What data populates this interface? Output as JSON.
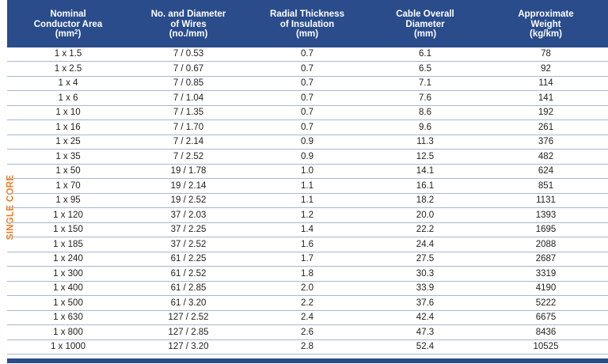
{
  "side_label": "SINGLE CORE",
  "headers": [
    {
      "lines": [
        "Nominal",
        "Conductor Area"
      ],
      "unit_pre": "(mm",
      "unit_sup": "2",
      "unit_post": ")"
    },
    {
      "lines": [
        "No. and Diameter",
        "of Wires"
      ],
      "unit_pre": "(no./mm)",
      "unit_sup": "",
      "unit_post": ""
    },
    {
      "lines": [
        "Radial Thickness",
        "of Insulation"
      ],
      "unit_pre": "(mm)",
      "unit_sup": "",
      "unit_post": ""
    },
    {
      "lines": [
        "Cable Overall",
        "Diameter"
      ],
      "unit_pre": "(mm)",
      "unit_sup": "",
      "unit_post": ""
    },
    {
      "lines": [
        "Approximate",
        "Weight"
      ],
      "unit_pre": "(kg/km)",
      "unit_sup": "",
      "unit_post": ""
    }
  ],
  "rows": [
    [
      "1 x 1.5",
      "7 / 0.53",
      "0.7",
      "6.1",
      "78"
    ],
    [
      "1 x 2.5",
      "7 / 0.67",
      "0.7",
      "6.5",
      "92"
    ],
    [
      "1 x 4",
      "7 / 0.85",
      "0.7",
      "7.1",
      "114"
    ],
    [
      "1 x 6",
      "7 / 1.04",
      "0.7",
      "7.6",
      "141"
    ],
    [
      "1 x 10",
      "7 / 1.35",
      "0.7",
      "8.6",
      "192"
    ],
    [
      "1 x 16",
      "7 / 1.70",
      "0.7",
      "9.6",
      "261"
    ],
    [
      "1 x 25",
      "7 / 2.14",
      "0.9",
      "11.3",
      "376"
    ],
    [
      "1 x 35",
      "7 / 2.52",
      "0.9",
      "12.5",
      "482"
    ],
    [
      "1 x 50",
      "19 / 1.78",
      "1.0",
      "14.1",
      "624"
    ],
    [
      "1 x 70",
      "19 / 2.14",
      "1.1",
      "16.1",
      "851"
    ],
    [
      "1 x 95",
      "19 / 2.52",
      "1.1",
      "18.2",
      "1131"
    ],
    [
      "1 x 120",
      "37 / 2.03",
      "1.2",
      "20.0",
      "1393"
    ],
    [
      "1 x 150",
      "37 / 2.25",
      "1.4",
      "22.2",
      "1695"
    ],
    [
      "1 x 185",
      "37 / 2.52",
      "1.6",
      "24.4",
      "2088"
    ],
    [
      "1 x 240",
      "61 / 2.25",
      "1.7",
      "27.5",
      "2687"
    ],
    [
      "1 x 300",
      "61 / 2.52",
      "1.8",
      "30.3",
      "3319"
    ],
    [
      "1 x 400",
      "61 / 2.85",
      "2.0",
      "33.9",
      "4190"
    ],
    [
      "1 x 500",
      "61 / 3.20",
      "2.2",
      "37.6",
      "5222"
    ],
    [
      "1 x 630",
      "127 / 2.52",
      "2.4",
      "42.4",
      "6675"
    ],
    [
      "1 x 800",
      "127 / 2.85",
      "2.6",
      "47.3",
      "8436"
    ],
    [
      "1 x 1000",
      "127 / 3.20",
      "2.8",
      "52.4",
      "10525"
    ]
  ],
  "colors": {
    "header_bg": "#2a4c8b",
    "side_label": "#ee7d22",
    "row_rule": "#a9b7cf"
  }
}
